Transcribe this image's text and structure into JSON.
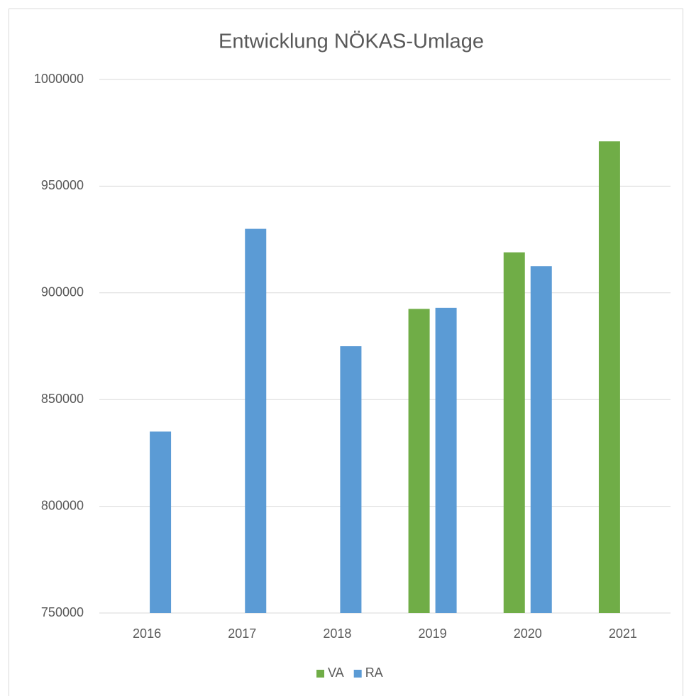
{
  "chart_data": {
    "type": "bar",
    "title": "Entwicklung NÖKAS-Umlage",
    "categories": [
      "2016",
      "2017",
      "2018",
      "2019",
      "2020",
      "2021"
    ],
    "series": [
      {
        "name": "VA",
        "color": "#70ad47",
        "values": [
          null,
          null,
          null,
          892500,
          919000,
          971000
        ]
      },
      {
        "name": "RA",
        "color": "#5b9bd5",
        "values": [
          835000,
          930000,
          875000,
          893000,
          912500,
          null
        ]
      }
    ],
    "ylim": [
      750000,
      1000000
    ],
    "yticks": [
      750000,
      800000,
      850000,
      900000,
      950000,
      1000000
    ],
    "grid": true,
    "legend": "bottom"
  }
}
